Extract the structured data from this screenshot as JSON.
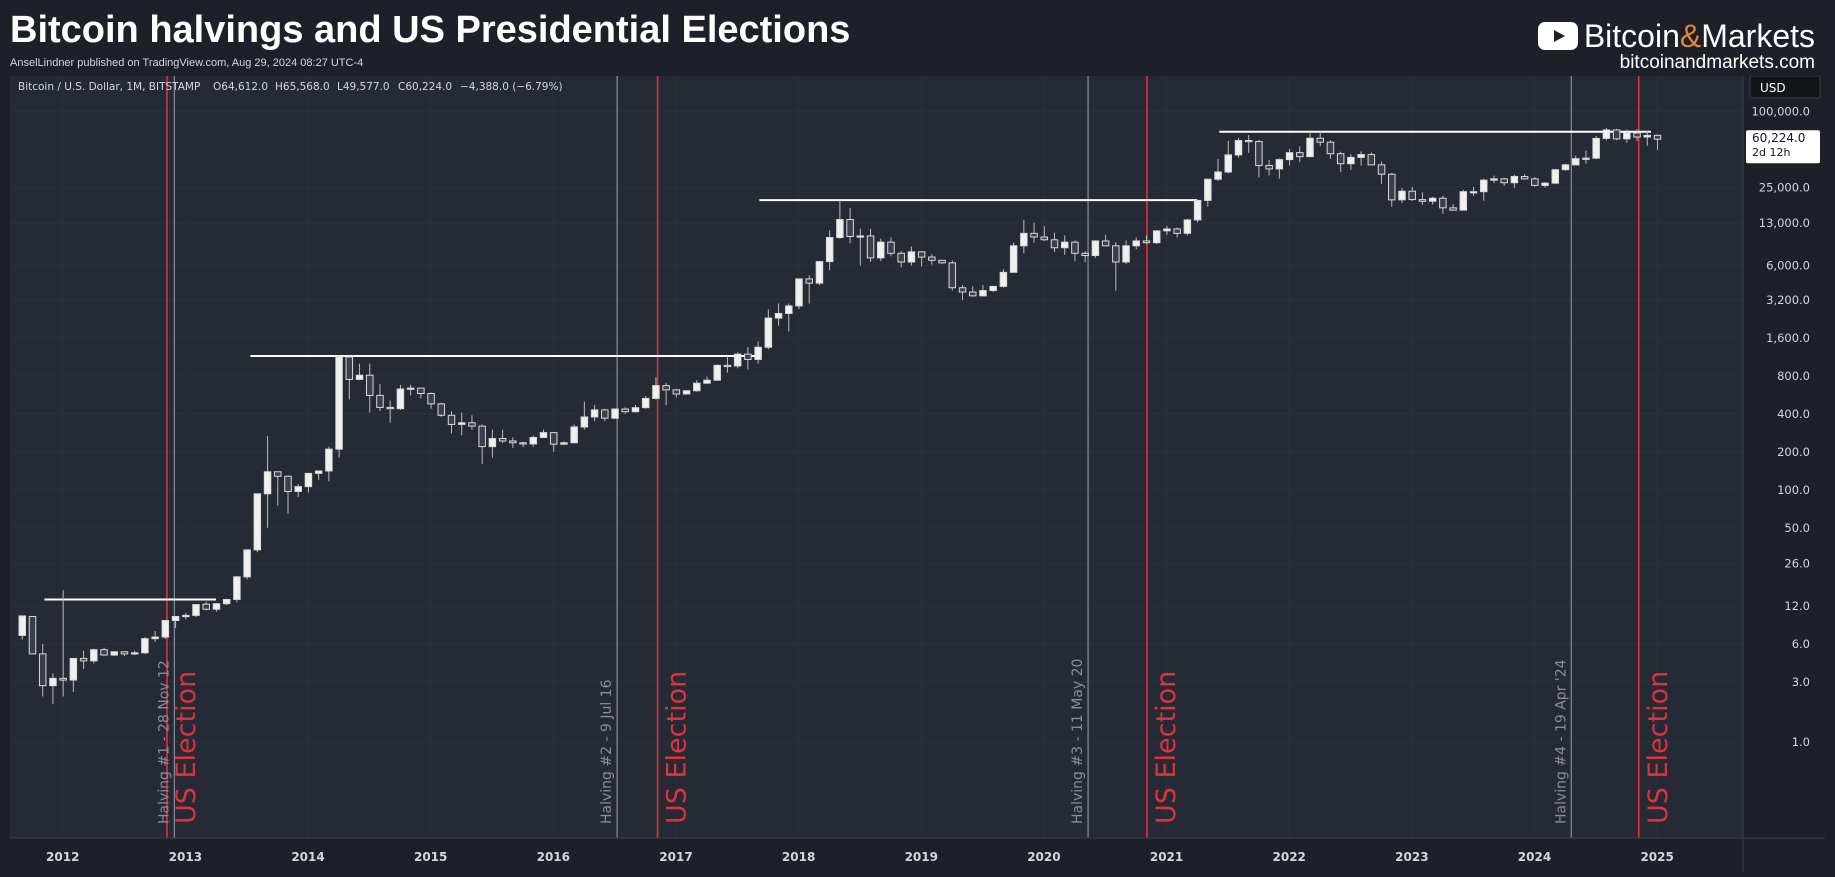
{
  "header": {
    "title": "Bitcoin halvings and US Presidential Elections",
    "byline": "AnselLindner published on TradingView.com, Aug 29, 2024 08:27 UTC-4",
    "brand_name_part1": "Bitcoin",
    "brand_amp": "&",
    "brand_name_part2": "Markets",
    "brand_url": "bitcoinandmarkets.com"
  },
  "colors": {
    "background": "#1d2029",
    "plot_background": "#262a34",
    "candle": "#d9d9d9",
    "wick": "#bdbdbd",
    "halving_line": "#8a8d96",
    "election_line": "#e03140",
    "election_text": "#e03140",
    "halving_text": "#8a8d96",
    "resistance_line": "#ffffff",
    "axis_text": "#d4d6dc",
    "brand_accent": "#e0843b"
  },
  "chart_data": {
    "type": "candlestick",
    "title": "Bitcoin halvings and US Presidential Elections",
    "symbol_line": "Bitcoin / U.S. Dollar, 1M, BITSTAMP",
    "ohlc_header": {
      "open": "O64,612.0",
      "high": "H65,568.0",
      "low": "L49,577.0",
      "close": "C60,224.0",
      "change": "−4,388.0 (−6.79%)"
    },
    "currency_label": "USD",
    "last_price_label": "60,224.0",
    "countdown_label": "2d 12h",
    "y_scale": "log",
    "ylim": [
      0.3,
      165000
    ],
    "x_range": [
      2011.57,
      2025.7
    ],
    "x_ticks": [
      2012,
      2013,
      2014,
      2015,
      2016,
      2017,
      2018,
      2019,
      2020,
      2021,
      2022,
      2023,
      2024,
      2025
    ],
    "x_tick_labels": [
      "2012",
      "2013",
      "2014",
      "2015",
      "2016",
      "2017",
      "2018",
      "2019",
      "2020",
      "2021",
      "2022",
      "2023",
      "2024",
      "2025"
    ],
    "y_ticks": [
      1,
      3,
      6,
      12,
      26,
      50,
      100,
      200,
      400,
      800,
      1600,
      3200,
      6000,
      13000,
      25000,
      100000
    ],
    "y_tick_labels": [
      "1.0",
      "3.0",
      "6.0",
      "12.0",
      "26.0",
      "50.0",
      "100.0",
      "200.0",
      "400.0",
      "800.0",
      "1,600.0",
      "3,200.0",
      "6,000.0",
      "13,000.0",
      "25,000.0",
      "100,000.0"
    ],
    "halvings": [
      {
        "date": 2012.91,
        "label": "Halving #1 - 28 Nov 12"
      },
      {
        "date": 2016.52,
        "label": "Halving #2 - 9 Jul 16"
      },
      {
        "date": 2020.36,
        "label": "Halving #3 - 11 May 20"
      },
      {
        "date": 2024.3,
        "label": "Halving #4 - 19 Apr '24"
      }
    ],
    "elections": [
      {
        "date": 2012.85,
        "label": "US Election"
      },
      {
        "date": 2016.85,
        "label": "US Election"
      },
      {
        "date": 2020.84,
        "label": "US Election"
      },
      {
        "date": 2024.85,
        "label": "US Election"
      }
    ],
    "resistance_levels": [
      {
        "x0": 2011.85,
        "x1": 2013.25,
        "y": 13.5
      },
      {
        "x0": 2013.53,
        "x1": 2017.68,
        "y": 1150
      },
      {
        "x0": 2017.68,
        "x1": 2021.25,
        "y": 19800
      },
      {
        "x0": 2021.43,
        "x1": 2024.95,
        "y": 69000
      }
    ],
    "candles_ohlc": [
      [
        7.0,
        9.9,
        6.5,
        10.0
      ],
      [
        9.9,
        10.0,
        5.0,
        5.0
      ],
      [
        5.0,
        6.0,
        2.3,
        2.8
      ],
      [
        2.8,
        3.5,
        2.0,
        3.2
      ],
      [
        3.2,
        16.0,
        2.3,
        3.1
      ],
      [
        3.1,
        3.5,
        2.5,
        4.6
      ],
      [
        4.6,
        5.3,
        3.8,
        4.4
      ],
      [
        4.4,
        5.5,
        4.2,
        5.4
      ],
      [
        5.4,
        5.6,
        4.8,
        4.9
      ],
      [
        4.9,
        5.0,
        4.8,
        5.2
      ],
      [
        5.2,
        5.1,
        4.8,
        5.0
      ],
      [
        5.0,
        5.3,
        4.9,
        5.1
      ],
      [
        5.1,
        6.8,
        5.0,
        6.6
      ],
      [
        6.6,
        7.6,
        6.2,
        6.8
      ],
      [
        6.8,
        9.3,
        6.6,
        9.2
      ],
      [
        9.2,
        10.0,
        8.0,
        9.9
      ],
      [
        9.9,
        10.5,
        9.4,
        10.1
      ],
      [
        10.1,
        12.4,
        9.8,
        12.3
      ],
      [
        12.4,
        13.0,
        11.0,
        11.3
      ],
      [
        11.3,
        12.6,
        10.8,
        12.5
      ],
      [
        12.5,
        13.7,
        12.2,
        13.5
      ],
      [
        13.5,
        20.7,
        12.8,
        20.4
      ],
      [
        20.4,
        33.4,
        19.5,
        33.4
      ],
      [
        33.4,
        93.0,
        32.0,
        93.0
      ],
      [
        93.0,
        266.0,
        50.0,
        139.0
      ],
      [
        139.0,
        140.0,
        75.0,
        128.0
      ],
      [
        128.0,
        130.0,
        65.0,
        97.0
      ],
      [
        97.0,
        111.0,
        88.0,
        106.0
      ],
      [
        106.0,
        111.0,
        95.0,
        135.0
      ],
      [
        135.0,
        142.0,
        120.0,
        141.0
      ],
      [
        141.0,
        220.0,
        117.0,
        210.0
      ],
      [
        210.0,
        1160.0,
        180.0,
        1130.0
      ],
      [
        1130.0,
        1160.0,
        520.0,
        750.0
      ],
      [
        750.0,
        1000.0,
        740.0,
        810.0
      ],
      [
        810.0,
        1000.0,
        410.0,
        560.0
      ],
      [
        560.0,
        690.0,
        420.0,
        450.0
      ],
      [
        450.0,
        510.0,
        340.0,
        440.0
      ],
      [
        440.0,
        680.0,
        430.0,
        630.0
      ],
      [
        630.0,
        680.0,
        560.0,
        640.0
      ],
      [
        640.0,
        600.0,
        530.0,
        580.0
      ],
      [
        580.0,
        590.0,
        440.0,
        480.0
      ],
      [
        480.0,
        490.0,
        380.0,
        390.0
      ],
      [
        390.0,
        420.0,
        280.0,
        330.0
      ],
      [
        330.0,
        410.0,
        270.0,
        340.0
      ],
      [
        340.0,
        390.0,
        300.0,
        320.0
      ],
      [
        320.0,
        330.0,
        160.0,
        220.0
      ],
      [
        220.0,
        300.0,
        180.0,
        255.0
      ],
      [
        255.0,
        300.0,
        235.0,
        244.0
      ],
      [
        244.0,
        260.0,
        215.0,
        236.0
      ],
      [
        236.0,
        240.0,
        218.0,
        231.0
      ],
      [
        231.0,
        270.0,
        220.0,
        260.0
      ],
      [
        260.0,
        300.0,
        260.0,
        284.0
      ],
      [
        284.0,
        285.0,
        200.0,
        230.0
      ],
      [
        230.0,
        242.0,
        227.0,
        236.0
      ],
      [
        236.0,
        330.0,
        236.0,
        315.0
      ],
      [
        315.0,
        500.0,
        300.0,
        378.0
      ],
      [
        378.0,
        470.0,
        350.0,
        430.0
      ],
      [
        430.0,
        440.0,
        350.0,
        370.0
      ],
      [
        370.0,
        440.0,
        365.0,
        437.0
      ],
      [
        437.0,
        450.0,
        400.0,
        416.0
      ],
      [
        416.0,
        470.0,
        410.0,
        448.0
      ],
      [
        448.0,
        555.0,
        440.0,
        530.0
      ],
      [
        530.0,
        780.0,
        520.0,
        670.0
      ],
      [
        670.0,
        700.0,
        470.0,
        620.0
      ],
      [
        620.0,
        630.0,
        540.0,
        575.0
      ],
      [
        575.0,
        615.0,
        585.0,
        610.0
      ],
      [
        610.0,
        740.0,
        600.0,
        700.0
      ],
      [
        700.0,
        790.0,
        700.0,
        740.0
      ],
      [
        740.0,
        990.0,
        730.0,
        970.0
      ],
      [
        970.0,
        1150.0,
        850.0,
        960.0
      ],
      [
        960.0,
        1230.0,
        920.0,
        1190.0
      ],
      [
        1190.0,
        1350.0,
        900.0,
        1080.0
      ],
      [
        1080.0,
        1500.0,
        1000.0,
        1350.0
      ],
      [
        1350.0,
        2700.0,
        1300.0,
        2300.0
      ],
      [
        2300.0,
        3000.0,
        2000.0,
        2500.0
      ],
      [
        2500.0,
        3000.0,
        1800.0,
        2870.0
      ],
      [
        2870.0,
        4700.0,
        2700.0,
        4700.0
      ],
      [
        4700.0,
        5000.0,
        3000.0,
        4350.0
      ],
      [
        4350.0,
        6400.0,
        4200.0,
        6450.0
      ],
      [
        6450.0,
        11400.0,
        5500.0,
        10000.0
      ],
      [
        10000.0,
        19800.0,
        9800.0,
        13900.0
      ],
      [
        13900.0,
        17100.0,
        9000.0,
        10200.0
      ],
      [
        10200.0,
        11800.0,
        6000.0,
        10300.0
      ],
      [
        10300.0,
        11700.0,
        6400.0,
        6900.0
      ],
      [
        6900.0,
        9800.0,
        6500.0,
        9200.0
      ],
      [
        9200.0,
        10000.0,
        7100.0,
        7500.0
      ],
      [
        7500.0,
        7800.0,
        5800.0,
        6400.0
      ],
      [
        6400.0,
        8500.0,
        6000.0,
        7700.0
      ],
      [
        7700.0,
        7800.0,
        5900.0,
        7000.0
      ],
      [
        7000.0,
        7400.0,
        6100.0,
        6600.0
      ],
      [
        6600.0,
        6600.0,
        6200.0,
        6300.0
      ],
      [
        6300.0,
        6600.0,
        3800.0,
        4000.0
      ],
      [
        4000.0,
        4200.0,
        3200.0,
        3700.0
      ],
      [
        3700.0,
        4100.0,
        3400.0,
        3450.0
      ],
      [
        3450.0,
        4200.0,
        3400.0,
        3800.0
      ],
      [
        3800.0,
        4100.0,
        3700.0,
        4100.0
      ],
      [
        4100.0,
        5600.0,
        4000.0,
        5300.0
      ],
      [
        5300.0,
        9100.0,
        5300.0,
        8600.0
      ],
      [
        8600.0,
        13800.0,
        7500.0,
        10800.0
      ],
      [
        10800.0,
        13100.0,
        9100.0,
        10100.0
      ],
      [
        10100.0,
        12300.0,
        9400.0,
        9600.0
      ],
      [
        9600.0,
        10900.0,
        7700.0,
        8300.0
      ],
      [
        8300.0,
        10400.0,
        7300.0,
        9200.0
      ],
      [
        9200.0,
        9500.0,
        6500.0,
        7500.0
      ],
      [
        7500.0,
        7800.0,
        6400.0,
        7200.0
      ],
      [
        7200.0,
        9500.0,
        6900.0,
        9400.0
      ],
      [
        9400.0,
        10500.0,
        8500.0,
        8600.0
      ],
      [
        8600.0,
        9200.0,
        3800.0,
        6400.0
      ],
      [
        6400.0,
        9500.0,
        6200.0,
        8600.0
      ],
      [
        8600.0,
        10000.0,
        8100.0,
        9400.0
      ],
      [
        9400.0,
        10400.0,
        8900.0,
        9100.0
      ],
      [
        9100.0,
        11400.0,
        8900.0,
        11300.0
      ],
      [
        11300.0,
        12400.0,
        10500.0,
        11700.0
      ],
      [
        11700.0,
        12000.0,
        10000.0,
        10800.0
      ],
      [
        10800.0,
        14100.0,
        10400.0,
        13800.0
      ],
      [
        13800.0,
        19800.0,
        13200.0,
        19700.0
      ],
      [
        19700.0,
        29300.0,
        17600.0,
        29000.0
      ],
      [
        29000.0,
        41900.0,
        28100.0,
        33100.0
      ],
      [
        33100.0,
        58300.0,
        32300.0,
        45200.0
      ],
      [
        45200.0,
        61700.0,
        43000.0,
        58800.0
      ],
      [
        58800.0,
        64800.0,
        47000.0,
        57700.0
      ],
      [
        57700.0,
        59500.0,
        30000.0,
        37300.0
      ],
      [
        37300.0,
        41300.0,
        31000.0,
        35000.0
      ],
      [
        35000.0,
        42400.0,
        29300.0,
        41500.0
      ],
      [
        41500.0,
        50500.0,
        37300.0,
        47100.0
      ],
      [
        47100.0,
        52900.0,
        39600.0,
        43800.0
      ],
      [
        43800.0,
        67000.0,
        43300.0,
        61300.0
      ],
      [
        61300.0,
        69000.0,
        53000.0,
        57000.0
      ],
      [
        57000.0,
        59100.0,
        42000.0,
        46200.0
      ],
      [
        46200.0,
        47900.0,
        33000.0,
        38500.0
      ],
      [
        38500.0,
        45800.0,
        34300.0,
        43200.0
      ],
      [
        43200.0,
        48200.0,
        37200.0,
        45500.0
      ],
      [
        45500.0,
        47400.0,
        37700.0,
        37700.0
      ],
      [
        37700.0,
        40000.0,
        26700.0,
        31800.0
      ],
      [
        31800.0,
        32400.0,
        17600.0,
        19900.0
      ],
      [
        19900.0,
        24700.0,
        18800.0,
        23300.0
      ],
      [
        23300.0,
        25200.0,
        19500.0,
        20000.0
      ],
      [
        20000.0,
        22800.0,
        18200.0,
        19400.0
      ],
      [
        19400.0,
        21000.0,
        18300.0,
        20500.0
      ],
      [
        20500.0,
        21500.0,
        15500.0,
        17200.0
      ],
      [
        17200.0,
        18400.0,
        16300.0,
        16500.0
      ],
      [
        16500.0,
        23900.0,
        16500.0,
        23100.0
      ],
      [
        23100.0,
        25200.0,
        21400.0,
        23100.0
      ],
      [
        23100.0,
        29200.0,
        19600.0,
        28500.0
      ],
      [
        28500.0,
        31000.0,
        27000.0,
        29200.0
      ],
      [
        29200.0,
        29800.0,
        25800.0,
        27200.0
      ],
      [
        27200.0,
        31400.0,
        24800.0,
        30500.0
      ],
      [
        30500.0,
        31800.0,
        29000.0,
        29200.0
      ],
      [
        29200.0,
        30100.0,
        25400.0,
        25900.0
      ],
      [
        25900.0,
        27500.0,
        24900.0,
        27000.0
      ],
      [
        27000.0,
        35000.0,
        26500.0,
        34500.0
      ],
      [
        34500.0,
        38400.0,
        34100.0,
        37700.0
      ],
      [
        37700.0,
        44700.0,
        37600.0,
        42200.0
      ],
      [
        42200.0,
        48900.0,
        38500.0,
        42600.0
      ],
      [
        42600.0,
        64000.0,
        41900.0,
        61100.0
      ],
      [
        61100.0,
        73800.0,
        59000.0,
        71300.0
      ],
      [
        71300.0,
        72800.0,
        59100.0,
        60600.0
      ],
      [
        60600.0,
        71900.0,
        56500.0,
        67500.0
      ],
      [
        67500.0,
        72000.0,
        58400.0,
        62700.0
      ],
      [
        62700.0,
        70000.0,
        53500.0,
        64600.0
      ],
      [
        64612.0,
        65568.0,
        49577.0,
        60224.0
      ]
    ],
    "candles_start": 2011.67,
    "candles_step": 0.08333,
    "candle_format": "[open, high, low, close]"
  }
}
